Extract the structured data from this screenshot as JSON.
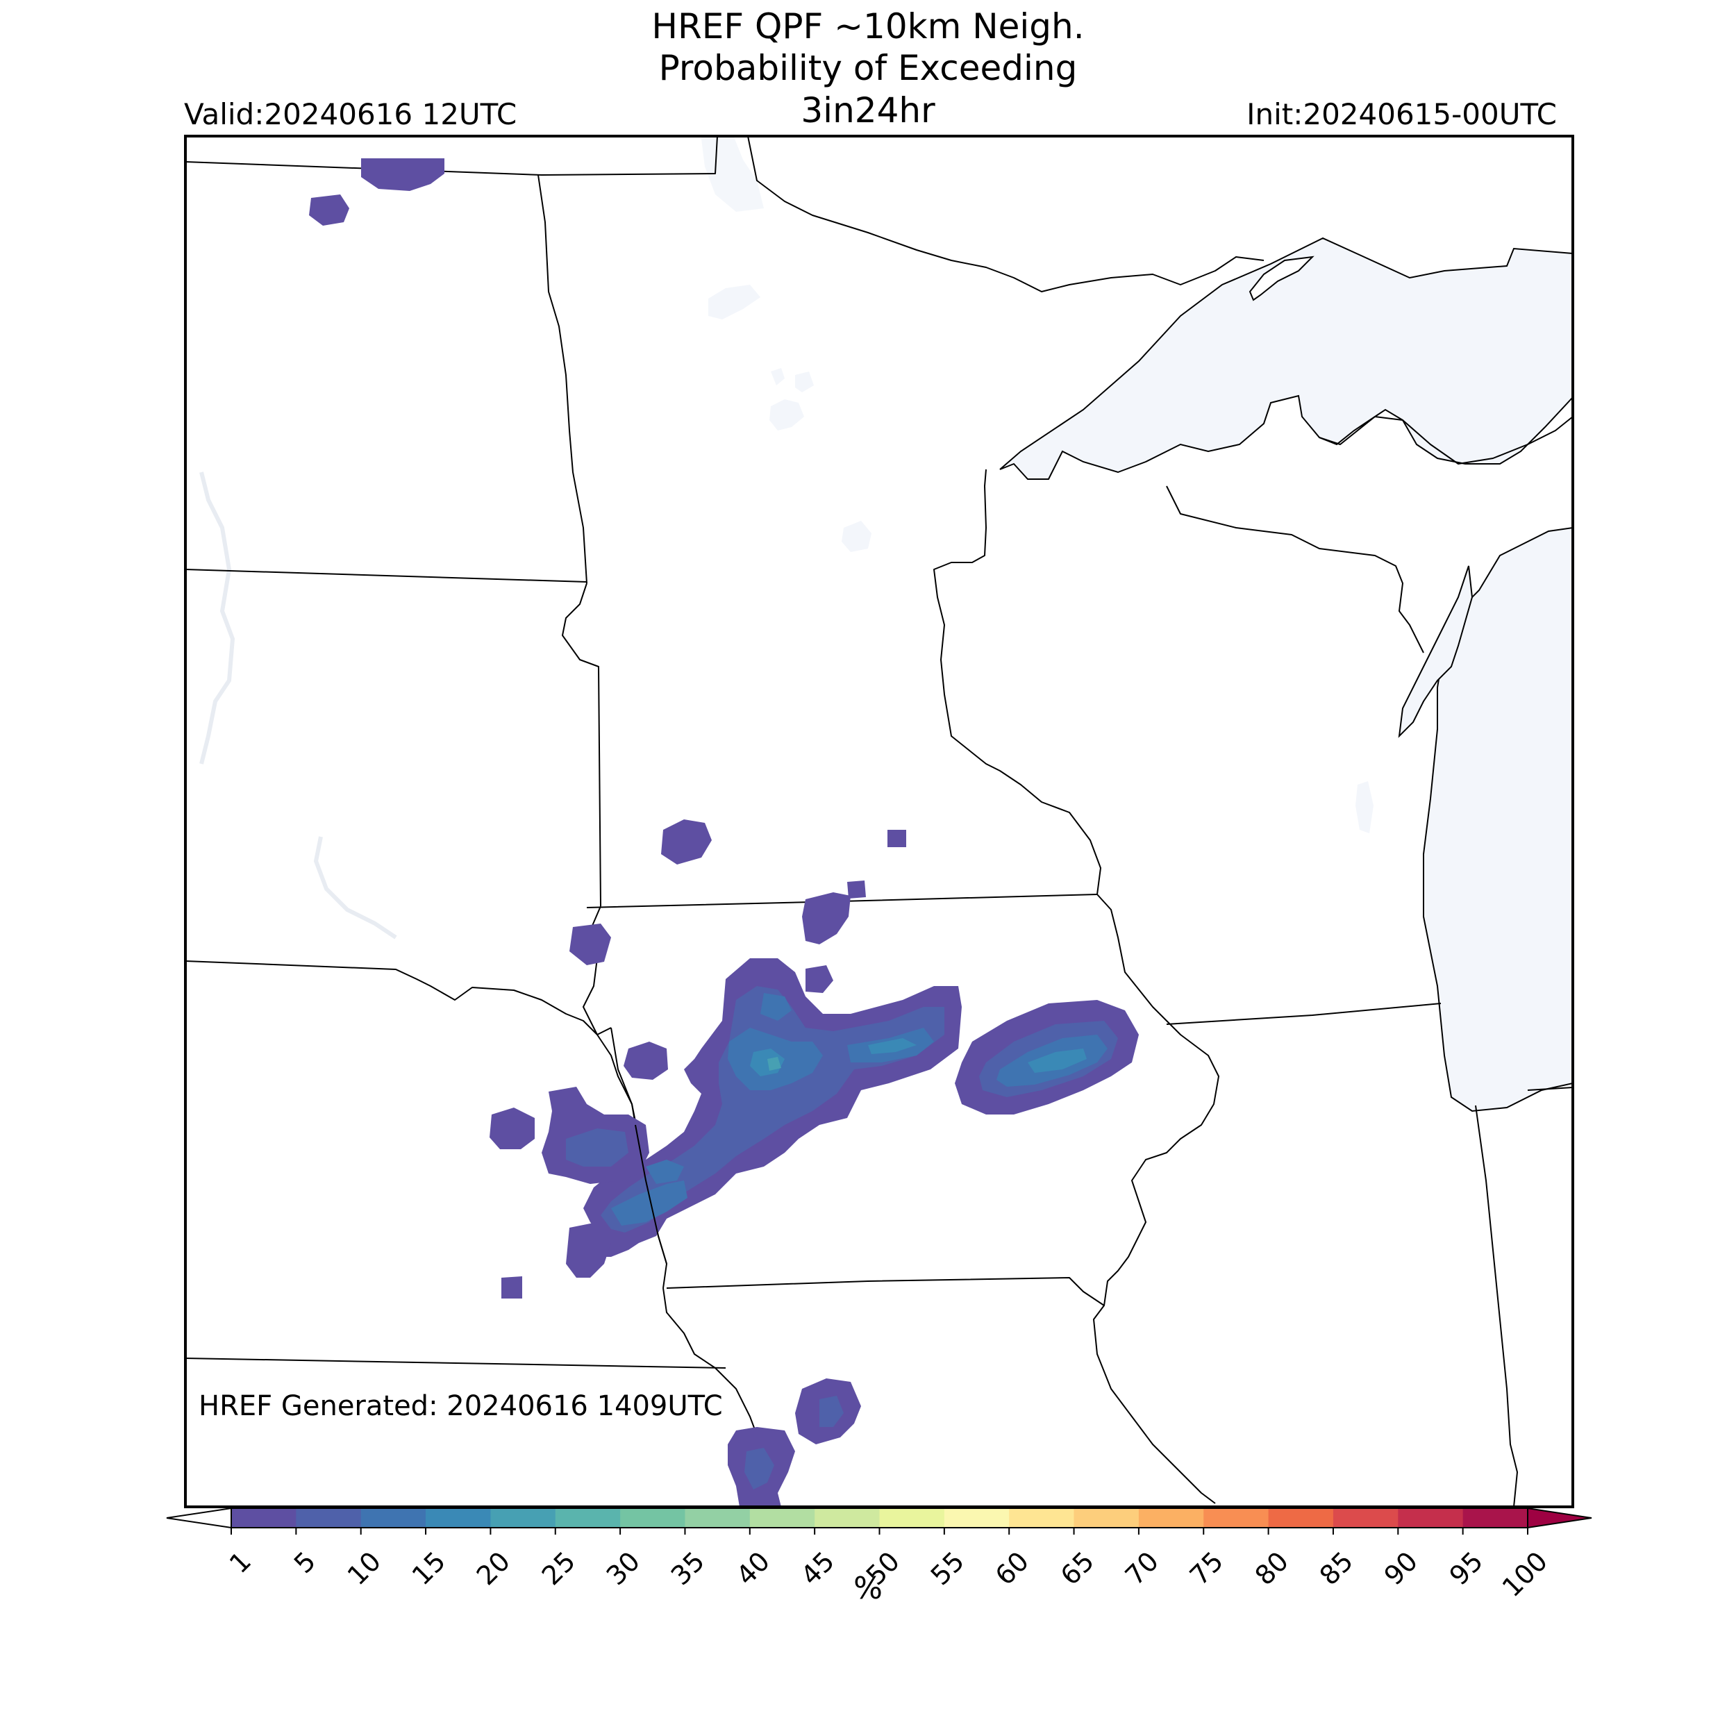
{
  "header": {
    "title_lines": [
      "HREF QPF ~10km Neigh.",
      "Probability of Exceeding",
      "3in24hr"
    ],
    "valid": "Valid:20240616 12UTC",
    "init": "Init:20240615-00UTC"
  },
  "footer": {
    "generated": "HREF Generated: 20240616 1409UTC"
  },
  "colorbar": {
    "unit": "%",
    "levels": [
      "1",
      "5",
      "10",
      "15",
      "20",
      "25",
      "30",
      "35",
      "40",
      "45",
      "50",
      "55",
      "60",
      "65",
      "70",
      "75",
      "80",
      "85",
      "90",
      "95",
      "100"
    ],
    "colors": [
      "#5e4fa2",
      "#4f61aa",
      "#3f74b1",
      "#3a89b6",
      "#47a0b3",
      "#5ab4ad",
      "#74c4a3",
      "#93d0a4",
      "#b2dea2",
      "#cfe99f",
      "#e9f59d",
      "#fbf7b0",
      "#fee593",
      "#fdce7c",
      "#fcb063",
      "#f88e53",
      "#ee6a45",
      "#dc4b4c",
      "#c52f4c",
      "#a9144b"
    ],
    "under_color": "#ffffff",
    "over_color": "#9e0142"
  },
  "map_colors": {
    "water": "#f3f6fb",
    "border": "#000000"
  }
}
